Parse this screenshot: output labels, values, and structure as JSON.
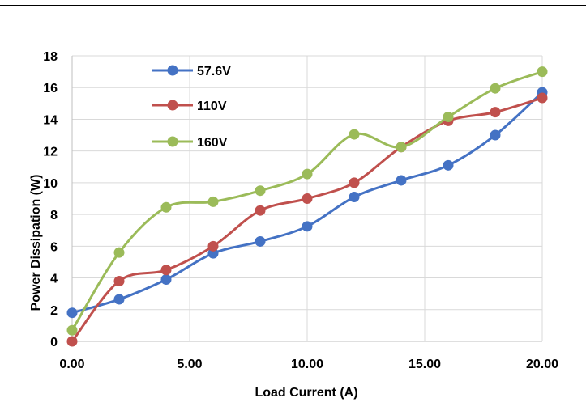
{
  "chart_data": {
    "type": "line",
    "title": "",
    "xlabel": "Load Current (A)",
    "ylabel": "Power Dissipation (W)",
    "xlim": [
      0,
      20
    ],
    "ylim": [
      0,
      18
    ],
    "x_tick_labels": [
      "0.00",
      "5.00",
      "10.00",
      "15.00",
      "20.00"
    ],
    "y_tick_labels": [
      "0",
      "2",
      "4",
      "6",
      "8",
      "10",
      "12",
      "14",
      "16",
      "18"
    ],
    "grid": true,
    "legend_position": "top-left",
    "smooth": true,
    "series": [
      {
        "name": "57.6V",
        "color": "#4472c4",
        "points": [
          [
            0,
            1.8
          ],
          [
            2,
            2.65
          ],
          [
            4,
            3.9
          ],
          [
            6,
            5.55
          ],
          [
            8,
            6.3
          ],
          [
            10,
            7.25
          ],
          [
            12,
            9.1
          ],
          [
            14,
            10.15
          ],
          [
            16,
            11.1
          ],
          [
            18,
            13.0
          ],
          [
            20,
            15.7
          ]
        ]
      },
      {
        "name": "110V",
        "color": "#c0504d",
        "points": [
          [
            0,
            0.0
          ],
          [
            2,
            3.8
          ],
          [
            4,
            4.5
          ],
          [
            6,
            6.0
          ],
          [
            8,
            8.25
          ],
          [
            10,
            9.0
          ],
          [
            12,
            10.0
          ],
          [
            14,
            12.25
          ],
          [
            16,
            13.9
          ],
          [
            18,
            14.45
          ],
          [
            20,
            15.35
          ]
        ]
      },
      {
        "name": "160V",
        "color": "#9bbb59",
        "points": [
          [
            0,
            0.7
          ],
          [
            2,
            5.6
          ],
          [
            4,
            8.45
          ],
          [
            6,
            8.8
          ],
          [
            8,
            9.5
          ],
          [
            10,
            10.55
          ],
          [
            12,
            13.05
          ],
          [
            14,
            12.25
          ],
          [
            16,
            14.15
          ],
          [
            18,
            15.95
          ],
          [
            20,
            17.0
          ]
        ]
      }
    ]
  }
}
